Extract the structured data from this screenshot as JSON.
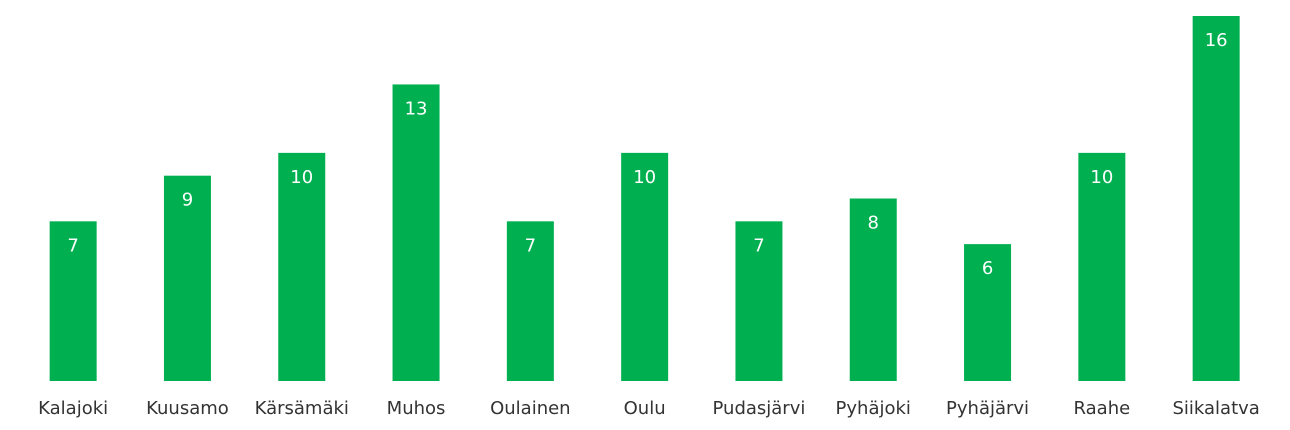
{
  "chart_data": {
    "type": "bar",
    "categories": [
      "Kalajoki",
      "Kuusamo",
      "Kärsämäki",
      "Muhos",
      "Oulainen",
      "Oulu",
      "Pudasjärvi",
      "Pyhäjoki",
      "Pyhäjärvi",
      "Raahe",
      "Siikalatva"
    ],
    "values": [
      7,
      9,
      10,
      13,
      7,
      10,
      7,
      8,
      6,
      10,
      16
    ],
    "color": "#00b050"
  }
}
